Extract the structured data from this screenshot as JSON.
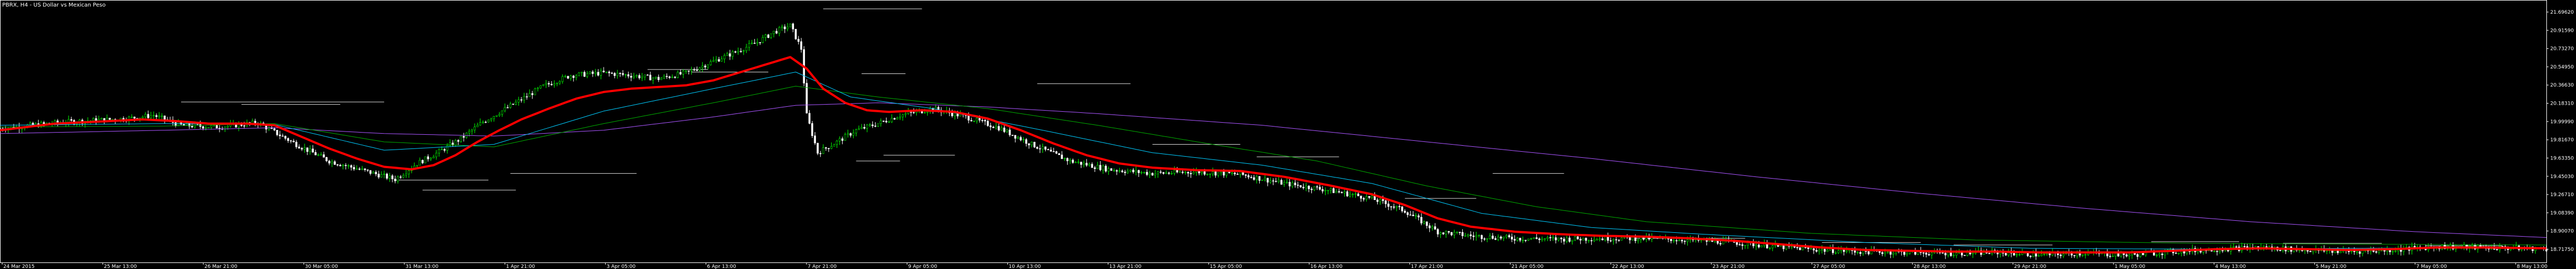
{
  "chart_data": {
    "type": "candlestick",
    "title": "PBRX, H4 - US Dollar vs Mexican Peso",
    "background": "#000000",
    "colors": {
      "bull_candle": "#00ff00",
      "bear_candle": "#ffffff",
      "ma_fast": "#ff0000",
      "ma_mid": "#00ccff",
      "ma_slow": "#00aa00",
      "ma_long": "#aa55ff",
      "level_lines": "#ffffff"
    },
    "y_axis_ticks": [
      "21.69620",
      "20.91590",
      "20.73270",
      "20.54950",
      "20.36630",
      "20.18310",
      "19.99990",
      "19.81670",
      "19.63350",
      "19.45030",
      "19.26710",
      "19.08390",
      "18.90070",
      "18.71750"
    ],
    "ylim": [
      18.65,
      21.76
    ],
    "x_axis_ticks": [
      "24 Mar 2015",
      "25 Mar 13:00",
      "26 Mar 21:00",
      "30 Mar 05:00",
      "31 Mar 13:00",
      "1 Apr 21:00",
      "3 Apr 05:00",
      "6 Apr 13:00",
      "7 Apr 21:00",
      "9 Apr 05:00",
      "10 Apr 13:00",
      "13 Apr 21:00",
      "15 Apr 05:00",
      "16 Apr 13:00",
      "17 Apr 21:00",
      "21 Apr 05:00",
      "22 Apr 13:00",
      "23 Apr 21:00",
      "27 Apr 05:00",
      "28 Apr 13:00",
      "29 Apr 21:00",
      "1 May 05:00",
      "4 May 13:00",
      "5 May 21:00",
      "7 May 05:00",
      "8 May 13:00"
    ],
    "close_path": [
      [
        0,
        20.24
      ],
      [
        120,
        20.32
      ],
      [
        230,
        20.36
      ],
      [
        280,
        20.4
      ],
      [
        330,
        20.28
      ],
      [
        400,
        20.26
      ],
      [
        470,
        20.31
      ],
      [
        540,
        20.05
      ],
      [
        600,
        19.85
      ],
      [
        660,
        19.74
      ],
      [
        720,
        19.63
      ],
      [
        760,
        19.82
      ],
      [
        800,
        19.96
      ],
      [
        840,
        20.12
      ],
      [
        880,
        20.32
      ],
      [
        940,
        20.55
      ],
      [
        990,
        20.75
      ],
      [
        1040,
        20.88
      ],
      [
        1100,
        20.91
      ],
      [
        1150,
        20.88
      ],
      [
        1200,
        20.84
      ],
      [
        1250,
        20.91
      ],
      [
        1300,
        21.05
      ],
      [
        1340,
        21.16
      ],
      [
        1380,
        21.28
      ],
      [
        1410,
        21.4
      ],
      [
        1440,
        21.48
      ],
      [
        1460,
        21.2
      ],
      [
        1470,
        20.4
      ],
      [
        1490,
        19.95
      ],
      [
        1520,
        20.06
      ],
      [
        1560,
        20.22
      ],
      [
        1600,
        20.3
      ],
      [
        1640,
        20.4
      ],
      [
        1700,
        20.48
      ],
      [
        1760,
        20.38
      ],
      [
        1820,
        20.25
      ],
      [
        1880,
        20.05
      ],
      [
        1950,
        19.85
      ],
      [
        2020,
        19.75
      ],
      [
        2100,
        19.7
      ],
      [
        2180,
        19.72
      ],
      [
        2260,
        19.69
      ],
      [
        2340,
        19.58
      ],
      [
        2420,
        19.5
      ],
      [
        2500,
        19.4
      ],
      [
        2560,
        19.25
      ],
      [
        2620,
        19.0
      ],
      [
        2680,
        18.95
      ],
      [
        2760,
        18.92
      ],
      [
        2840,
        18.91
      ],
      [
        2920,
        18.92
      ],
      [
        3000,
        18.92
      ],
      [
        3080,
        18.9
      ],
      [
        3160,
        18.87
      ],
      [
        3240,
        18.82
      ],
      [
        3320,
        18.78
      ],
      [
        3400,
        18.76
      ],
      [
        3480,
        18.75
      ],
      [
        3560,
        18.74
      ],
      [
        3640,
        18.75
      ],
      [
        3720,
        18.72
      ],
      [
        3800,
        18.74
      ],
      [
        3880,
        18.72
      ],
      [
        3960,
        18.76
      ],
      [
        4040,
        18.79
      ],
      [
        4120,
        18.81
      ],
      [
        4200,
        18.78
      ],
      [
        4280,
        18.76
      ],
      [
        4360,
        18.78
      ],
      [
        4440,
        18.82
      ],
      [
        4520,
        18.81
      ],
      [
        4600,
        18.8
      ],
      [
        4640,
        18.79
      ]
    ],
    "ma_fast": [
      [
        0,
        20.22
      ],
      [
        100,
        20.3
      ],
      [
        200,
        20.33
      ],
      [
        260,
        20.35
      ],
      [
        320,
        20.33
      ],
      [
        380,
        20.3
      ],
      [
        450,
        20.3
      ],
      [
        500,
        20.28
      ],
      [
        550,
        20.14
      ],
      [
        600,
        20.0
      ],
      [
        650,
        19.88
      ],
      [
        700,
        19.78
      ],
      [
        750,
        19.75
      ],
      [
        790,
        19.8
      ],
      [
        830,
        19.92
      ],
      [
        870,
        20.08
      ],
      [
        910,
        20.22
      ],
      [
        950,
        20.35
      ],
      [
        1000,
        20.48
      ],
      [
        1050,
        20.6
      ],
      [
        1100,
        20.68
      ],
      [
        1150,
        20.72
      ],
      [
        1200,
        20.74
      ],
      [
        1250,
        20.76
      ],
      [
        1300,
        20.82
      ],
      [
        1350,
        20.92
      ],
      [
        1400,
        21.02
      ],
      [
        1440,
        21.1
      ],
      [
        1470,
        20.96
      ],
      [
        1500,
        20.72
      ],
      [
        1540,
        20.55
      ],
      [
        1580,
        20.46
      ],
      [
        1620,
        20.44
      ],
      [
        1680,
        20.46
      ],
      [
        1740,
        20.44
      ],
      [
        1800,
        20.36
      ],
      [
        1860,
        20.22
      ],
      [
        1920,
        20.06
      ],
      [
        1980,
        19.92
      ],
      [
        2040,
        19.82
      ],
      [
        2100,
        19.77
      ],
      [
        2180,
        19.74
      ],
      [
        2260,
        19.73
      ],
      [
        2340,
        19.66
      ],
      [
        2420,
        19.56
      ],
      [
        2500,
        19.45
      ],
      [
        2560,
        19.32
      ],
      [
        2620,
        19.16
      ],
      [
        2680,
        19.06
      ],
      [
        2760,
        19.0
      ],
      [
        2840,
        18.97
      ],
      [
        2920,
        18.95
      ],
      [
        3000,
        18.94
      ],
      [
        3080,
        18.92
      ],
      [
        3160,
        18.89
      ],
      [
        3240,
        18.85
      ],
      [
        3320,
        18.81
      ],
      [
        3400,
        18.78
      ],
      [
        3480,
        18.77
      ],
      [
        3560,
        18.76
      ],
      [
        3640,
        18.76
      ],
      [
        3720,
        18.75
      ],
      [
        3800,
        18.75
      ],
      [
        3880,
        18.75
      ],
      [
        3960,
        18.77
      ],
      [
        4040,
        18.79
      ],
      [
        4120,
        18.8
      ],
      [
        4200,
        18.79
      ],
      [
        4280,
        18.78
      ],
      [
        4360,
        18.79
      ],
      [
        4440,
        18.81
      ],
      [
        4520,
        18.81
      ],
      [
        4640,
        18.8
      ]
    ],
    "ma_mid": [
      [
        0,
        20.28
      ],
      [
        300,
        20.3
      ],
      [
        500,
        20.29
      ],
      [
        700,
        19.98
      ],
      [
        900,
        20.05
      ],
      [
        1100,
        20.45
      ],
      [
        1300,
        20.72
      ],
      [
        1450,
        20.92
      ],
      [
        1550,
        20.62
      ],
      [
        1700,
        20.48
      ],
      [
        1900,
        20.22
      ],
      [
        2100,
        19.95
      ],
      [
        2300,
        19.8
      ],
      [
        2500,
        19.58
      ],
      [
        2700,
        19.22
      ],
      [
        2900,
        19.05
      ],
      [
        3100,
        18.97
      ],
      [
        3400,
        18.87
      ],
      [
        3700,
        18.8
      ],
      [
        4000,
        18.79
      ],
      [
        4300,
        18.8
      ],
      [
        4640,
        18.81
      ]
    ],
    "ma_slow": [
      [
        0,
        20.26
      ],
      [
        300,
        20.27
      ],
      [
        500,
        20.3
      ],
      [
        700,
        20.08
      ],
      [
        900,
        20.02
      ],
      [
        1100,
        20.3
      ],
      [
        1300,
        20.55
      ],
      [
        1450,
        20.75
      ],
      [
        1600,
        20.62
      ],
      [
        1800,
        20.48
      ],
      [
        2000,
        20.28
      ],
      [
        2200,
        20.06
      ],
      [
        2400,
        19.85
      ],
      [
        2600,
        19.55
      ],
      [
        2800,
        19.3
      ],
      [
        3000,
        19.12
      ],
      [
        3300,
        18.98
      ],
      [
        3600,
        18.9
      ],
      [
        4000,
        18.86
      ],
      [
        4300,
        18.85
      ],
      [
        4640,
        18.84
      ]
    ],
    "ma_long": [
      [
        0,
        20.18
      ],
      [
        300,
        20.22
      ],
      [
        500,
        20.25
      ],
      [
        700,
        20.18
      ],
      [
        900,
        20.15
      ],
      [
        1100,
        20.22
      ],
      [
        1300,
        20.38
      ],
      [
        1450,
        20.52
      ],
      [
        1600,
        20.55
      ],
      [
        1800,
        20.5
      ],
      [
        2000,
        20.42
      ],
      [
        2300,
        20.28
      ],
      [
        2600,
        20.08
      ],
      [
        2900,
        19.88
      ],
      [
        3200,
        19.66
      ],
      [
        3500,
        19.46
      ],
      [
        3800,
        19.28
      ],
      [
        4100,
        19.12
      ],
      [
        4400,
        19.0
      ],
      [
        4640,
        18.93
      ]
    ],
    "level_lines": [
      [
        330,
        20.56,
        700
      ],
      [
        440,
        20.53,
        620
      ],
      [
        720,
        19.62,
        890
      ],
      [
        770,
        19.5,
        940
      ],
      [
        930,
        19.7,
        1160
      ],
      [
        1180,
        20.95,
        1290
      ],
      [
        1260,
        20.92,
        1400
      ],
      [
        1500,
        21.68,
        1680
      ],
      [
        1560,
        19.85,
        1640
      ],
      [
        1570,
        20.9,
        1650
      ],
      [
        1610,
        19.92,
        1740
      ],
      [
        1890,
        20.78,
        2060
      ],
      [
        2100,
        20.05,
        2260
      ],
      [
        2290,
        19.9,
        2440
      ],
      [
        2560,
        19.4,
        2690
      ],
      [
        2720,
        19.7,
        2850
      ],
      [
        2980,
        18.92,
        3180
      ],
      [
        3320,
        18.87,
        3500
      ],
      [
        3560,
        18.84,
        3740
      ],
      [
        3920,
        18.88,
        4080
      ],
      [
        4160,
        18.86,
        4340
      ],
      [
        4420,
        18.83,
        4560
      ]
    ]
  }
}
